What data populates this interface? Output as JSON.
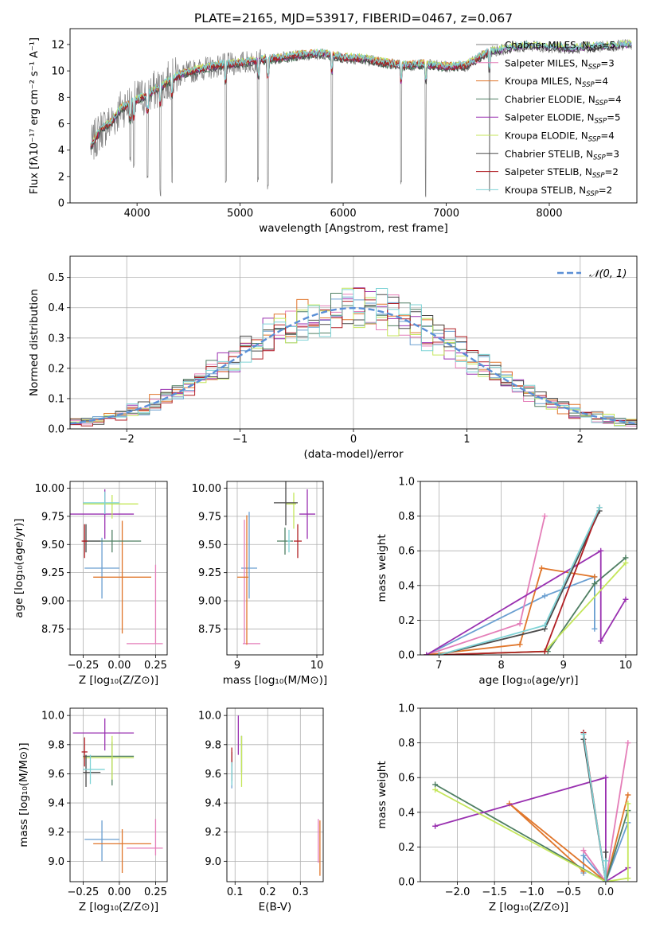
{
  "colors": [
    "#6a9fd1",
    "#e47eb8",
    "#e0762b",
    "#4e7e62",
    "#9930b0",
    "#c4e65a",
    "#4a4a4a",
    "#b01f24",
    "#7fd3d6"
  ],
  "spec_colors": [
    "#808080",
    "#e47eb8",
    "#e0762b",
    "#4e7e62",
    "#9930b0",
    "#c4e65a",
    "#4a4a4a",
    "#b01f24",
    "#7fd3d6"
  ],
  "chart_data": [
    {
      "id": "spectrum",
      "type": "line",
      "title": "PLATE=2165, MJD=53917, FIBERID=0467, z=0.067",
      "xlabel": "wavelength [Angstrom, rest frame]",
      "ylabel": "Flux [fλ10⁻¹⁷ erg cm⁻² s⁻¹ A⁻¹]",
      "xlim": [
        3350,
        8850
      ],
      "ylim": [
        0,
        13.2
      ],
      "xticks": [
        4000,
        5000,
        6000,
        7000,
        8000
      ],
      "yticks": [
        0,
        2,
        4,
        6,
        8,
        10,
        12
      ],
      "grid": false,
      "legend_position": "right",
      "legend": [
        "Chabrier MILES, N_SSP=5",
        "Salpeter MILES, N_SSP=3",
        "Kroupa MILES, N_SSP=4",
        "Chabrier ELODIE, N_SSP=4",
        "Salpeter ELODIE, N_SSP=5",
        "Kroupa ELODIE, N_SSP=4",
        "Chabrier STELIB, N_SSP=3",
        "Salpeter STELIB, N_SSP=2",
        "Kroupa STELIB, N_SSP=2"
      ],
      "continuum": [
        [
          3550,
          4.2
        ],
        [
          3650,
          5.6
        ],
        [
          3750,
          6.1
        ],
        [
          3850,
          7.2
        ],
        [
          3950,
          7.6
        ],
        [
          4050,
          8.0
        ],
        [
          4150,
          8.4
        ],
        [
          4250,
          8.9
        ],
        [
          4350,
          9.4
        ],
        [
          4450,
          9.8
        ],
        [
          4600,
          10.1
        ],
        [
          4800,
          10.4
        ],
        [
          5000,
          10.6
        ],
        [
          5200,
          10.8
        ],
        [
          5400,
          11.0
        ],
        [
          5600,
          11.2
        ],
        [
          5800,
          11.3
        ],
        [
          6000,
          11.0
        ],
        [
          6200,
          10.9
        ],
        [
          6400,
          10.6
        ],
        [
          6600,
          10.4
        ],
        [
          6800,
          10.5
        ],
        [
          7000,
          10.3
        ],
        [
          7200,
          10.4
        ],
        [
          7400,
          11.4
        ],
        [
          7600,
          11.7
        ],
        [
          7800,
          11.9
        ],
        [
          8000,
          11.8
        ],
        [
          8200,
          11.7
        ],
        [
          8400,
          11.8
        ],
        [
          8600,
          11.9
        ],
        [
          8800,
          12.0
        ]
      ],
      "absorption_lines": [
        [
          3934,
          3.0
        ],
        [
          3969,
          2.5
        ],
        [
          4102,
          1.5
        ],
        [
          4227,
          0.5
        ],
        [
          4340,
          1.5
        ],
        [
          4861,
          1.2
        ],
        [
          5175,
          1.5
        ],
        [
          5270,
          0.8
        ],
        [
          5890,
          1.4
        ],
        [
          6563,
          1.2
        ],
        [
          6800,
          0.2
        ],
        [
          7420,
          0.3
        ]
      ]
    },
    {
      "id": "residuals",
      "type": "histogram",
      "xlabel": "(data-model)/error",
      "ylabel": "Normed distribution",
      "xlim": [
        -2.5,
        2.5
      ],
      "ylim": [
        0,
        0.57
      ],
      "xticks": [
        -2,
        -1,
        0,
        1,
        2
      ],
      "yticks": [
        0.0,
        0.1,
        0.2,
        0.3,
        0.4,
        0.5
      ],
      "grid": true,
      "legend_position": "top-right",
      "legend": [
        "𝒩(0, 1)"
      ],
      "bin_width": 0.1,
      "model_curve": "normal(0,1)"
    },
    {
      "id": "age_vs_Z",
      "type": "scatter",
      "xlabel": "Z [log₁₀(Z/Z⊙)]",
      "ylabel": "age  [log₁₀(age/yr)]",
      "xlim": [
        -0.34,
        0.33
      ],
      "ylim": [
        8.52,
        10.06
      ],
      "xticks": [
        -0.25,
        0.0,
        0.25
      ],
      "xticklabels": [
        "−0.25",
        "0.00",
        "0.25"
      ],
      "yticks": [
        8.75,
        9.0,
        9.25,
        9.5,
        9.75,
        10.0
      ],
      "yticklabels": [
        "8.75",
        "9.00",
        "9.25",
        "9.50",
        "9.75",
        "10.00"
      ],
      "grid": true,
      "points": [
        {
          "x": -0.12,
          "y": 9.29,
          "xerr": [
            0.12,
            0.12
          ],
          "yerr": [
            0.27,
            0.27
          ]
        },
        {
          "x": 0.25,
          "y": 8.62,
          "xerr": [
            0.2,
            0.05
          ],
          "yerr": [
            0,
            0.7
          ]
        },
        {
          "x": 0.02,
          "y": 9.21,
          "xerr": [
            0.2,
            0.2
          ],
          "yerr": [
            0.5,
            0.5
          ]
        },
        {
          "x": -0.05,
          "y": 9.53,
          "xerr": [
            0.2,
            0.2
          ],
          "yerr": [
            0.1,
            0.1
          ]
        },
        {
          "x": -0.1,
          "y": 9.77,
          "xerr": [
            0.25,
            0.2
          ],
          "yerr": [
            0.22,
            0.22
          ]
        },
        {
          "x": -0.05,
          "y": 9.86,
          "xerr": [
            0.2,
            0.18
          ],
          "yerr": [
            0.13,
            0.08
          ]
        },
        {
          "x": -0.23,
          "y": 9.53,
          "xerr": [
            0.02,
            0.1
          ],
          "yerr": [
            0.1,
            0.15
          ]
        },
        {
          "x": -0.24,
          "y": 9.53,
          "xerr": [
            0.02,
            0.02
          ],
          "yerr": [
            0.15,
            0.15
          ]
        },
        {
          "x": -0.1,
          "y": 9.87,
          "xerr": [
            0.15,
            0.1
          ],
          "yerr": [
            0.1,
            0.1
          ]
        }
      ]
    },
    {
      "id": "age_vs_mass",
      "type": "scatter",
      "xlabel": "mass [log₁₀(M/M⊙)]",
      "ylabel": "",
      "xlim": [
        8.87,
        10.08
      ],
      "ylim": [
        8.52,
        10.06
      ],
      "xticks": [
        9,
        10
      ],
      "xticklabels": [
        "9",
        "10"
      ],
      "yticks": [
        8.75,
        9.0,
        9.25,
        9.5,
        9.75,
        10.0
      ],
      "yticklabels": [
        "8.75",
        "9.00",
        "9.25",
        "9.50",
        "9.75",
        "10.00"
      ],
      "grid": true,
      "points": [
        {
          "x": 9.15,
          "y": 9.29,
          "xerr": [
            0.1,
            0.1
          ],
          "yerr": [
            0.27,
            0.5
          ]
        },
        {
          "x": 9.09,
          "y": 8.62,
          "xerr": [
            0.02,
            0.2
          ],
          "yerr": [
            0,
            1.1
          ]
        },
        {
          "x": 9.12,
          "y": 9.21,
          "xerr": [
            0.12,
            0.02
          ],
          "yerr": [
            0.6,
            0.55
          ]
        },
        {
          "x": 9.6,
          "y": 9.53,
          "xerr": [
            0.1,
            0.1
          ],
          "yerr": [
            0.12,
            0.12
          ]
        },
        {
          "x": 9.88,
          "y": 9.77,
          "xerr": [
            0.1,
            0.1
          ],
          "yerr": [
            0.22,
            0.22
          ]
        },
        {
          "x": 9.71,
          "y": 9.86,
          "xerr": [
            0.1,
            0.03
          ],
          "yerr": [
            0.22,
            0.1
          ]
        },
        {
          "x": 9.61,
          "y": 9.87,
          "xerr": [
            0.15,
            0.15
          ],
          "yerr": [
            0.2,
            0.3
          ]
        },
        {
          "x": 9.76,
          "y": 9.53,
          "xerr": [
            0.05,
            0.05
          ],
          "yerr": [
            0.15,
            0.15
          ]
        },
        {
          "x": 9.65,
          "y": 9.53,
          "xerr": [
            0.02,
            0.02
          ],
          "yerr": [
            0.1,
            0.1
          ]
        }
      ]
    },
    {
      "id": "weight_vs_age",
      "type": "line",
      "xlabel": "age  [log₁₀(age/yr)]",
      "ylabel": "mass weight",
      "xlim": [
        6.7,
        10.18
      ],
      "ylim": [
        0,
        1.0
      ],
      "xticks": [
        7,
        8,
        9,
        10
      ],
      "yticks": [
        0.0,
        0.2,
        0.4,
        0.6,
        0.8,
        1.0
      ],
      "grid": true,
      "series": [
        {
          "points": [
            [
              6.8,
              0.0
            ],
            [
              8.7,
              0.34
            ],
            [
              9.5,
              0.45
            ],
            [
              9.5,
              0.15
            ]
          ]
        },
        {
          "points": [
            [
              6.8,
              0.0
            ],
            [
              8.3,
              0.18
            ],
            [
              8.7,
              0.8
            ]
          ]
        },
        {
          "points": [
            [
              6.8,
              0.0
            ],
            [
              8.3,
              0.06
            ],
            [
              8.65,
              0.5
            ],
            [
              9.5,
              0.45
            ]
          ]
        },
        {
          "points": [
            [
              7.0,
              0.0
            ],
            [
              8.75,
              0.02
            ],
            [
              9.5,
              0.41
            ],
            [
              10.0,
              0.56
            ]
          ]
        },
        {
          "points": [
            [
              6.8,
              0.0
            ],
            [
              9.6,
              0.6
            ],
            [
              9.6,
              0.08
            ],
            [
              10.0,
              0.32
            ]
          ]
        },
        {
          "points": [
            [
              7.0,
              0.0
            ],
            [
              8.7,
              0.02
            ],
            [
              10.0,
              0.53
            ]
          ]
        },
        {
          "points": [
            [
              7.0,
              0.0
            ],
            [
              8.7,
              0.15
            ],
            [
              9.58,
              0.83
            ]
          ]
        },
        {
          "points": [
            [
              7.0,
              0.0
            ],
            [
              8.7,
              0.02
            ],
            [
              9.58,
              0.85
            ]
          ]
        },
        {
          "points": [
            [
              7.0,
              0.0
            ],
            [
              8.7,
              0.17
            ],
            [
              9.58,
              0.85
            ]
          ]
        }
      ]
    },
    {
      "id": "mass_vs_Z",
      "type": "scatter",
      "xlabel": "Z [log₁₀(Z/Z⊙)]",
      "ylabel": "mass [log₁₀(M/M⊙)]",
      "xlim": [
        -0.34,
        0.33
      ],
      "ylim": [
        8.86,
        10.05
      ],
      "xticks": [
        -0.25,
        0.0,
        0.25
      ],
      "xticklabels": [
        "−0.25",
        "0.00",
        "0.25"
      ],
      "yticks": [
        9.0,
        9.2,
        9.4,
        9.6,
        9.8,
        10.0
      ],
      "yticklabels": [
        "9.0",
        "9.2",
        "9.4",
        "9.6",
        "9.8",
        "10.0"
      ],
      "grid": true,
      "points": [
        {
          "x": -0.12,
          "y": 9.15,
          "xerr": [
            0.12,
            0.12
          ],
          "yerr": [
            0.15,
            0.13
          ]
        },
        {
          "x": 0.25,
          "y": 9.09,
          "xerr": [
            0.2,
            0.05
          ],
          "yerr": [
            0.05,
            0.2
          ]
        },
        {
          "x": 0.02,
          "y": 9.12,
          "xerr": [
            0.2,
            0.2
          ],
          "yerr": [
            0.2,
            0.1
          ]
        },
        {
          "x": -0.05,
          "y": 9.72,
          "xerr": [
            0.2,
            0.15
          ],
          "yerr": [
            0.2,
            0.1
          ]
        },
        {
          "x": -0.1,
          "y": 9.88,
          "xerr": [
            0.22,
            0.2
          ],
          "yerr": [
            0.12,
            0.1
          ]
        },
        {
          "x": -0.05,
          "y": 9.71,
          "xerr": [
            0.2,
            0.15
          ],
          "yerr": [
            0.15,
            0.15
          ]
        },
        {
          "x": -0.23,
          "y": 9.61,
          "xerr": [
            0.02,
            0.1
          ],
          "yerr": [
            0.1,
            0.12
          ]
        },
        {
          "x": -0.24,
          "y": 9.75,
          "xerr": [
            0.02,
            0.02
          ],
          "yerr": [
            0.1,
            0.1
          ]
        },
        {
          "x": -0.2,
          "y": 9.63,
          "xerr": [
            0.05,
            0.1
          ],
          "yerr": [
            0.1,
            0.1
          ]
        }
      ]
    },
    {
      "id": "mass_vs_ebv",
      "type": "scatter",
      "xlabel": "E(B-V)",
      "ylabel": "",
      "xlim": [
        0.075,
        0.37
      ],
      "ylim": [
        8.86,
        10.05
      ],
      "xticks": [
        0.1,
        0.2,
        0.3
      ],
      "xticklabels": [
        "0.1",
        "0.2",
        "0.3"
      ],
      "yticks": [
        9.0,
        9.2,
        9.4,
        9.6,
        9.8,
        10.0
      ],
      "yticklabels": [
        "9.0",
        "9.2",
        "9.4",
        "9.6",
        "9.8",
        "10.0"
      ],
      "grid": true,
      "points": [
        {
          "x": 0.09,
          "y": 9.6,
          "xerr": [
            0,
            0
          ],
          "yerr": [
            0.1,
            0.1
          ]
        },
        {
          "x": 0.355,
          "y": 9.09,
          "xerr": [
            0,
            0
          ],
          "yerr": [
            0.1,
            0.2
          ]
        },
        {
          "x": 0.36,
          "y": 9.1,
          "xerr": [
            0,
            0
          ],
          "yerr": [
            0.2,
            0.18
          ]
        },
        {
          "x": 0.12,
          "y": 9.71,
          "xerr": [
            0,
            0
          ],
          "yerr": [
            0.1,
            0.15
          ]
        },
        {
          "x": 0.11,
          "y": 9.88,
          "xerr": [
            0,
            0
          ],
          "yerr": [
            0.15,
            0.12
          ]
        },
        {
          "x": 0.12,
          "y": 9.71,
          "xerr": [
            0,
            0
          ],
          "yerr": [
            0.2,
            0.15
          ]
        },
        {
          "x": 0.09,
          "y": 9.65,
          "xerr": [
            0,
            0
          ],
          "yerr": [
            0.1,
            0.1
          ]
        },
        {
          "x": 0.09,
          "y": 9.7,
          "xerr": [
            0,
            0
          ],
          "yerr": [
            0.05,
            0.08
          ]
        },
        {
          "x": 0.09,
          "y": 9.6,
          "xerr": [
            0,
            0
          ],
          "yerr": [
            0.08,
            0.08
          ]
        }
      ]
    },
    {
      "id": "weight_vs_Z",
      "type": "line",
      "xlabel": "Z [log₁₀(Z/Z⊙)]",
      "ylabel": "mass weight",
      "xlim": [
        -2.5,
        0.42
      ],
      "ylim": [
        0,
        1.0
      ],
      "xticks": [
        -2.0,
        -1.5,
        -1.0,
        -0.5,
        0.0
      ],
      "xticklabels": [
        "−2.0",
        "−1.5",
        "−1.0",
        "−0.5",
        "0.0"
      ],
      "yticks": [
        0.0,
        0.2,
        0.4,
        0.6,
        0.8,
        1.0
      ],
      "grid": true,
      "series": [
        {
          "points": [
            [
              0.3,
              0.34
            ],
            [
              0.0,
              0.0
            ],
            [
              -0.3,
              0.15
            ],
            [
              -0.3,
              0.05
            ]
          ]
        },
        {
          "points": [
            [
              0.3,
              0.8
            ],
            [
              0.0,
              0.0
            ],
            [
              -0.3,
              0.18
            ]
          ]
        },
        {
          "points": [
            [
              0.3,
              0.5
            ],
            [
              0.0,
              0.0
            ],
            [
              -1.3,
              0.45
            ],
            [
              -0.3,
              0.06
            ]
          ]
        },
        {
          "points": [
            [
              -2.3,
              0.56
            ],
            [
              0.0,
              0.0
            ],
            [
              0.3,
              0.41
            ]
          ]
        },
        {
          "points": [
            [
              -2.3,
              0.32
            ],
            [
              0.0,
              0.6
            ],
            [
              0.0,
              0.0
            ],
            [
              0.3,
              0.08
            ]
          ]
        },
        {
          "points": [
            [
              -2.3,
              0.53
            ],
            [
              0.0,
              0.0
            ],
            [
              0.3,
              0.02
            ],
            [
              0.3,
              0.45
            ]
          ]
        },
        {
          "points": [
            [
              -0.3,
              0.82
            ],
            [
              0.0,
              0.0
            ],
            [
              0.0,
              0.17
            ]
          ]
        },
        {
          "points": [
            [
              -0.3,
              0.86
            ],
            [
              0.0,
              0.0
            ]
          ]
        },
        {
          "points": [
            [
              -0.3,
              0.85
            ],
            [
              0.0,
              0.0
            ],
            [
              0.0,
              0.12
            ]
          ]
        }
      ]
    }
  ]
}
